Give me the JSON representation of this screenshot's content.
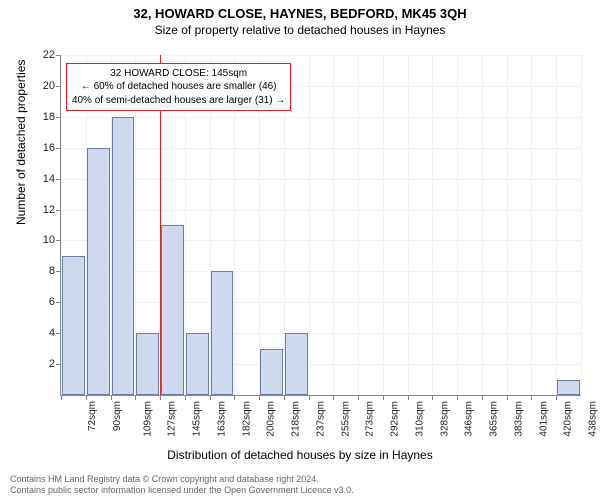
{
  "title": "32, HOWARD CLOSE, HAYNES, BEDFORD, MK45 3QH",
  "subtitle": "Size of property relative to detached houses in Haynes",
  "y_axis_title": "Number of detached properties",
  "x_axis_title": "Distribution of detached houses by size in Haynes",
  "chart": {
    "type": "histogram",
    "bar_fill": "#cfd9ee",
    "bar_stroke": "#6e7da3",
    "grid_color": "#eef0f5",
    "axis_color": "#888888",
    "background": "#ffffff",
    "y_max": 22,
    "y_ticks": [
      2,
      4,
      6,
      8,
      10,
      12,
      14,
      16,
      18,
      20,
      22
    ],
    "bins": 21,
    "bar_width_ratio": 0.92,
    "x_tick_labels": [
      "72sqm",
      "90sqm",
      "109sqm",
      "127sqm",
      "145sqm",
      "163sqm",
      "182sqm",
      "200sqm",
      "218sqm",
      "237sqm",
      "255sqm",
      "273sqm",
      "292sqm",
      "310sqm",
      "328sqm",
      "346sqm",
      "365sqm",
      "383sqm",
      "401sqm",
      "420sqm",
      "438sqm"
    ],
    "values": [
      9,
      16,
      18,
      4,
      11,
      4,
      8,
      0,
      3,
      4,
      0,
      0,
      0,
      0,
      0,
      0,
      0,
      0,
      0,
      0,
      1
    ],
    "reference_line": {
      "bin_index_after": 4,
      "color": "#d62728"
    },
    "annotation": {
      "border_color": "#d62728",
      "lines": [
        "32 HOWARD CLOSE: 145sqm",
        "← 60% of detached houses are smaller (46)",
        "40% of semi-detached houses are larger (31) →"
      ],
      "left_bin": 0.2,
      "top_y_value": 21.5
    }
  },
  "footer": {
    "line1": "Contains HM Land Registry data © Crown copyright and database right 2024.",
    "line2": "Contains public sector information licensed under the Open Government Licence v3.0."
  }
}
